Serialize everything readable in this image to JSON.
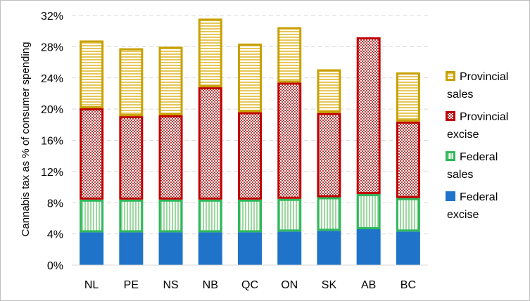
{
  "chart_data": {
    "type": "bar",
    "stacked": true,
    "categories": [
      "NL",
      "PE",
      "NS",
      "NB",
      "QC",
      "ON",
      "SK",
      "AB",
      "BC"
    ],
    "ylabel": "Cannabis tax as % of consumer spending",
    "ylim": [
      0,
      32
    ],
    "yticks": [
      0,
      4,
      8,
      12,
      16,
      20,
      24,
      28,
      32
    ],
    "ytick_labels": [
      "0%",
      "4%",
      "8%",
      "12%",
      "16%",
      "20%",
      "24%",
      "28%",
      "32%"
    ],
    "grid": true,
    "legend_position": "right",
    "series": [
      {
        "name": "Federal excise",
        "values": [
          4.2,
          4.2,
          4.2,
          4.2,
          4.2,
          4.3,
          4.4,
          4.6,
          4.3
        ],
        "fill": "#1f73c8",
        "stroke": "#1f73c8",
        "pattern": "solid"
      },
      {
        "name": "Federal sales",
        "values": [
          4.2,
          4.2,
          4.2,
          4.2,
          4.2,
          4.2,
          4.3,
          4.5,
          4.3
        ],
        "fill": "#ffffff",
        "stroke": "#2eb85c",
        "pattern": "vertical"
      },
      {
        "name": "Provincial excise",
        "values": [
          11.7,
          10.7,
          10.8,
          14.4,
          11.2,
          14.9,
          10.8,
          20.1,
          9.8
        ],
        "fill": "#ffffff",
        "stroke": "#c00000",
        "pattern": "checker"
      },
      {
        "name": "Provincial sales",
        "values": [
          8.7,
          8.7,
          8.8,
          8.8,
          8.8,
          7.1,
          5.6,
          0,
          6.3
        ],
        "fill": "#ffffff",
        "stroke": "#c8a000",
        "pattern": "horizontal"
      }
    ],
    "legend": [
      {
        "line1": "Provincial",
        "line2": "sales",
        "series_index": 3
      },
      {
        "line1": "Provincial",
        "line2": "excise",
        "series_index": 2
      },
      {
        "line1": "Federal",
        "line2": "sales",
        "series_index": 1
      },
      {
        "line1": "Federal",
        "line2": "excise",
        "series_index": 0
      }
    ]
  }
}
